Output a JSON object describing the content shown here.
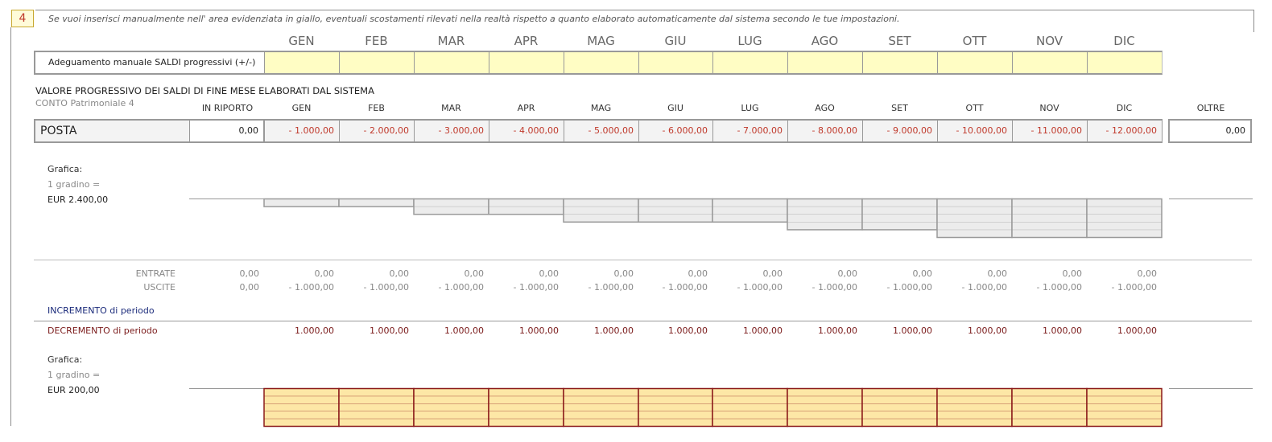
{
  "step_number": "4",
  "instructions": "Se vuoi inserisci manualmente nell' area evidenziata in giallo, eventuali scostamenti rilevati nella realtà rispetto a quanto elaborato automaticamente dal sistema secondo le tue impostazioni.",
  "months": [
    "GEN",
    "FEB",
    "MAR",
    "APR",
    "MAG",
    "GIU",
    "LUG",
    "AGO",
    "SET",
    "OTT",
    "NOV",
    "DIC"
  ],
  "adjustment": {
    "label": "Adeguamento manuale SALDI progressivi (+/-)",
    "values": [
      "",
      "",
      "",
      "",
      "",
      "",
      "",
      "",
      "",
      "",
      "",
      ""
    ]
  },
  "balances": {
    "title": "VALORE PROGRESSIVO DEI SALDI DI FINE MESE ELABORATI DAL SISTEMA",
    "subtitle": "CONTO Patrimoniale 4",
    "col_in_riporto": "IN RIPORTO",
    "col_oltre": "OLTRE",
    "account_name": "POSTA",
    "in_riporto": "0,00",
    "values": [
      "- 1.000,00",
      "- 2.000,00",
      "- 3.000,00",
      "- 4.000,00",
      "- 5.000,00",
      "- 6.000,00",
      "- 7.000,00",
      "- 8.000,00",
      "- 9.000,00",
      "- 10.000,00",
      "- 11.000,00",
      "- 12.000,00"
    ],
    "oltre": "0,00"
  },
  "chart1": {
    "label": "Grafica:",
    "step_label": "1 gradino =",
    "step_value": "EUR 2.400,00",
    "step_amount": 2400,
    "fill_color": "#ececec",
    "stroke_color": "#9a9a9a"
  },
  "flows": {
    "entrate_label": "ENTRATE",
    "uscite_label": "USCITE",
    "entrate_in_riporto": "0,00",
    "uscite_in_riporto": "0,00",
    "entrate": [
      "0,00",
      "0,00",
      "0,00",
      "0,00",
      "0,00",
      "0,00",
      "0,00",
      "0,00",
      "0,00",
      "0,00",
      "0,00",
      "0,00"
    ],
    "uscite": [
      "- 1.000,00",
      "- 1.000,00",
      "- 1.000,00",
      "- 1.000,00",
      "- 1.000,00",
      "- 1.000,00",
      "- 1.000,00",
      "- 1.000,00",
      "- 1.000,00",
      "- 1.000,00",
      "- 1.000,00",
      "- 1.000,00"
    ]
  },
  "increment": {
    "label": "INCREMENTO di periodo"
  },
  "decrement": {
    "label": "DECREMENTO di periodo",
    "values": [
      "1.000,00",
      "1.000,00",
      "1.000,00",
      "1.000,00",
      "1.000,00",
      "1.000,00",
      "1.000,00",
      "1.000,00",
      "1.000,00",
      "1.000,00",
      "1.000,00",
      "1.000,00"
    ]
  },
  "chart2": {
    "label": "Grafica:",
    "step_label": "1 gradino =",
    "step_value": "EUR 200,00",
    "step_amount": 200,
    "fill_color": "#fde7a6",
    "stroke_color": "#8b1a1a"
  },
  "chart_data": [
    {
      "type": "bar",
      "categories": [
        "GEN",
        "FEB",
        "MAR",
        "APR",
        "MAG",
        "GIU",
        "LUG",
        "AGO",
        "SET",
        "OTT",
        "NOV",
        "DIC"
      ],
      "values": [
        -1000,
        -2000,
        -3000,
        -4000,
        -5000,
        -6000,
        -7000,
        -8000,
        -9000,
        -10000,
        -11000,
        -12000
      ]
    },
    {
      "type": "bar",
      "categories": [
        "GEN",
        "FEB",
        "MAR",
        "APR",
        "MAG",
        "GIU",
        "LUG",
        "AGO",
        "SET",
        "OTT",
        "NOV",
        "DIC"
      ],
      "values": [
        1000,
        1000,
        1000,
        1000,
        1000,
        1000,
        1000,
        1000,
        1000,
        1000,
        1000,
        1000
      ]
    }
  ]
}
